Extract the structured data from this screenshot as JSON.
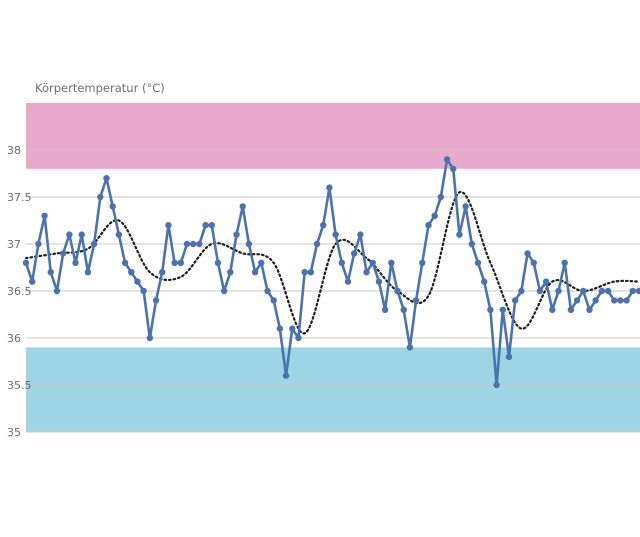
{
  "chart_data": {
    "type": "line",
    "ylabel": "Körpertemperatur (°C)",
    "ylim": [
      35,
      38.5
    ],
    "yticks": [
      "35",
      "35.5",
      "36",
      "36.5",
      "37",
      "37.5",
      "38"
    ],
    "grid": true,
    "bands": [
      {
        "from": 37.8,
        "to": 38.5,
        "color": "#e8a9cc"
      },
      {
        "from": 35.0,
        "to": 35.9,
        "color": "#9dd5e4"
      }
    ],
    "colors": {
      "series": "#4a72b0",
      "trend": "#1f1f1f",
      "grid": "#c8c8c8"
    },
    "series": [
      {
        "style": "solid-with-markers",
        "x": [
          0,
          1,
          2,
          3,
          4,
          5,
          6,
          7,
          8,
          9,
          10,
          11,
          12,
          13,
          14,
          15,
          16,
          17,
          18,
          19,
          20,
          21,
          22,
          23,
          24,
          25,
          26,
          27,
          28,
          29,
          30,
          31,
          32,
          33,
          34,
          35,
          36,
          37,
          38,
          39,
          40,
          41,
          42,
          43,
          44,
          45,
          46,
          47,
          48,
          49,
          50,
          51,
          52,
          53,
          54,
          55,
          56,
          57,
          58,
          59,
          60,
          61,
          62,
          63,
          64,
          65,
          66,
          67,
          68,
          69,
          70,
          71,
          72,
          73,
          74,
          75,
          76,
          77,
          78,
          79,
          80,
          81,
          82,
          83,
          84,
          85,
          86,
          87,
          88,
          89,
          90,
          91,
          92,
          93,
          94,
          95,
          96,
          97,
          98,
          99
        ],
        "values": [
          36.8,
          36.6,
          37.0,
          37.3,
          36.7,
          36.5,
          36.9,
          37.1,
          36.8,
          37.1,
          36.7,
          37.0,
          37.5,
          37.7,
          37.4,
          37.1,
          36.8,
          36.7,
          36.6,
          36.5,
          36.0,
          36.4,
          36.7,
          37.2,
          36.8,
          36.8,
          37.0,
          37.0,
          37.0,
          37.2,
          37.2,
          36.8,
          36.5,
          36.7,
          37.1,
          37.4,
          37.0,
          36.7,
          36.8,
          36.5,
          36.4,
          36.1,
          35.6,
          36.1,
          36.0,
          36.7,
          36.7,
          37.0,
          37.2,
          37.6,
          37.1,
          36.8,
          36.6,
          36.9,
          37.1,
          36.7,
          36.8,
          36.6,
          36.3,
          36.8,
          36.5,
          36.3,
          35.9,
          36.4,
          36.8,
          37.2,
          37.3,
          37.5,
          37.9,
          37.8,
          37.1,
          37.4,
          37.0,
          36.8,
          36.6,
          36.3,
          35.5,
          36.3,
          35.8,
          36.4,
          36.5,
          36.9,
          36.8,
          36.5,
          36.6,
          36.3,
          36.5,
          36.8,
          36.3,
          36.4,
          36.5,
          36.3,
          36.4,
          36.5,
          36.5,
          36.4,
          36.4,
          36.4,
          36.5,
          36.5
        ]
      },
      {
        "style": "dotted-trend",
        "x": [
          0,
          5,
          10,
          15,
          20,
          25,
          30,
          35,
          40,
          45,
          50,
          55,
          60,
          65,
          70,
          75,
          80,
          85,
          90,
          95,
          99
        ],
        "values": [
          36.85,
          36.9,
          36.95,
          37.25,
          36.7,
          36.65,
          37.0,
          36.9,
          36.8,
          36.05,
          37.0,
          36.85,
          36.5,
          36.45,
          37.55,
          36.8,
          36.1,
          36.6,
          36.5,
          36.6,
          36.6
        ]
      }
    ]
  }
}
